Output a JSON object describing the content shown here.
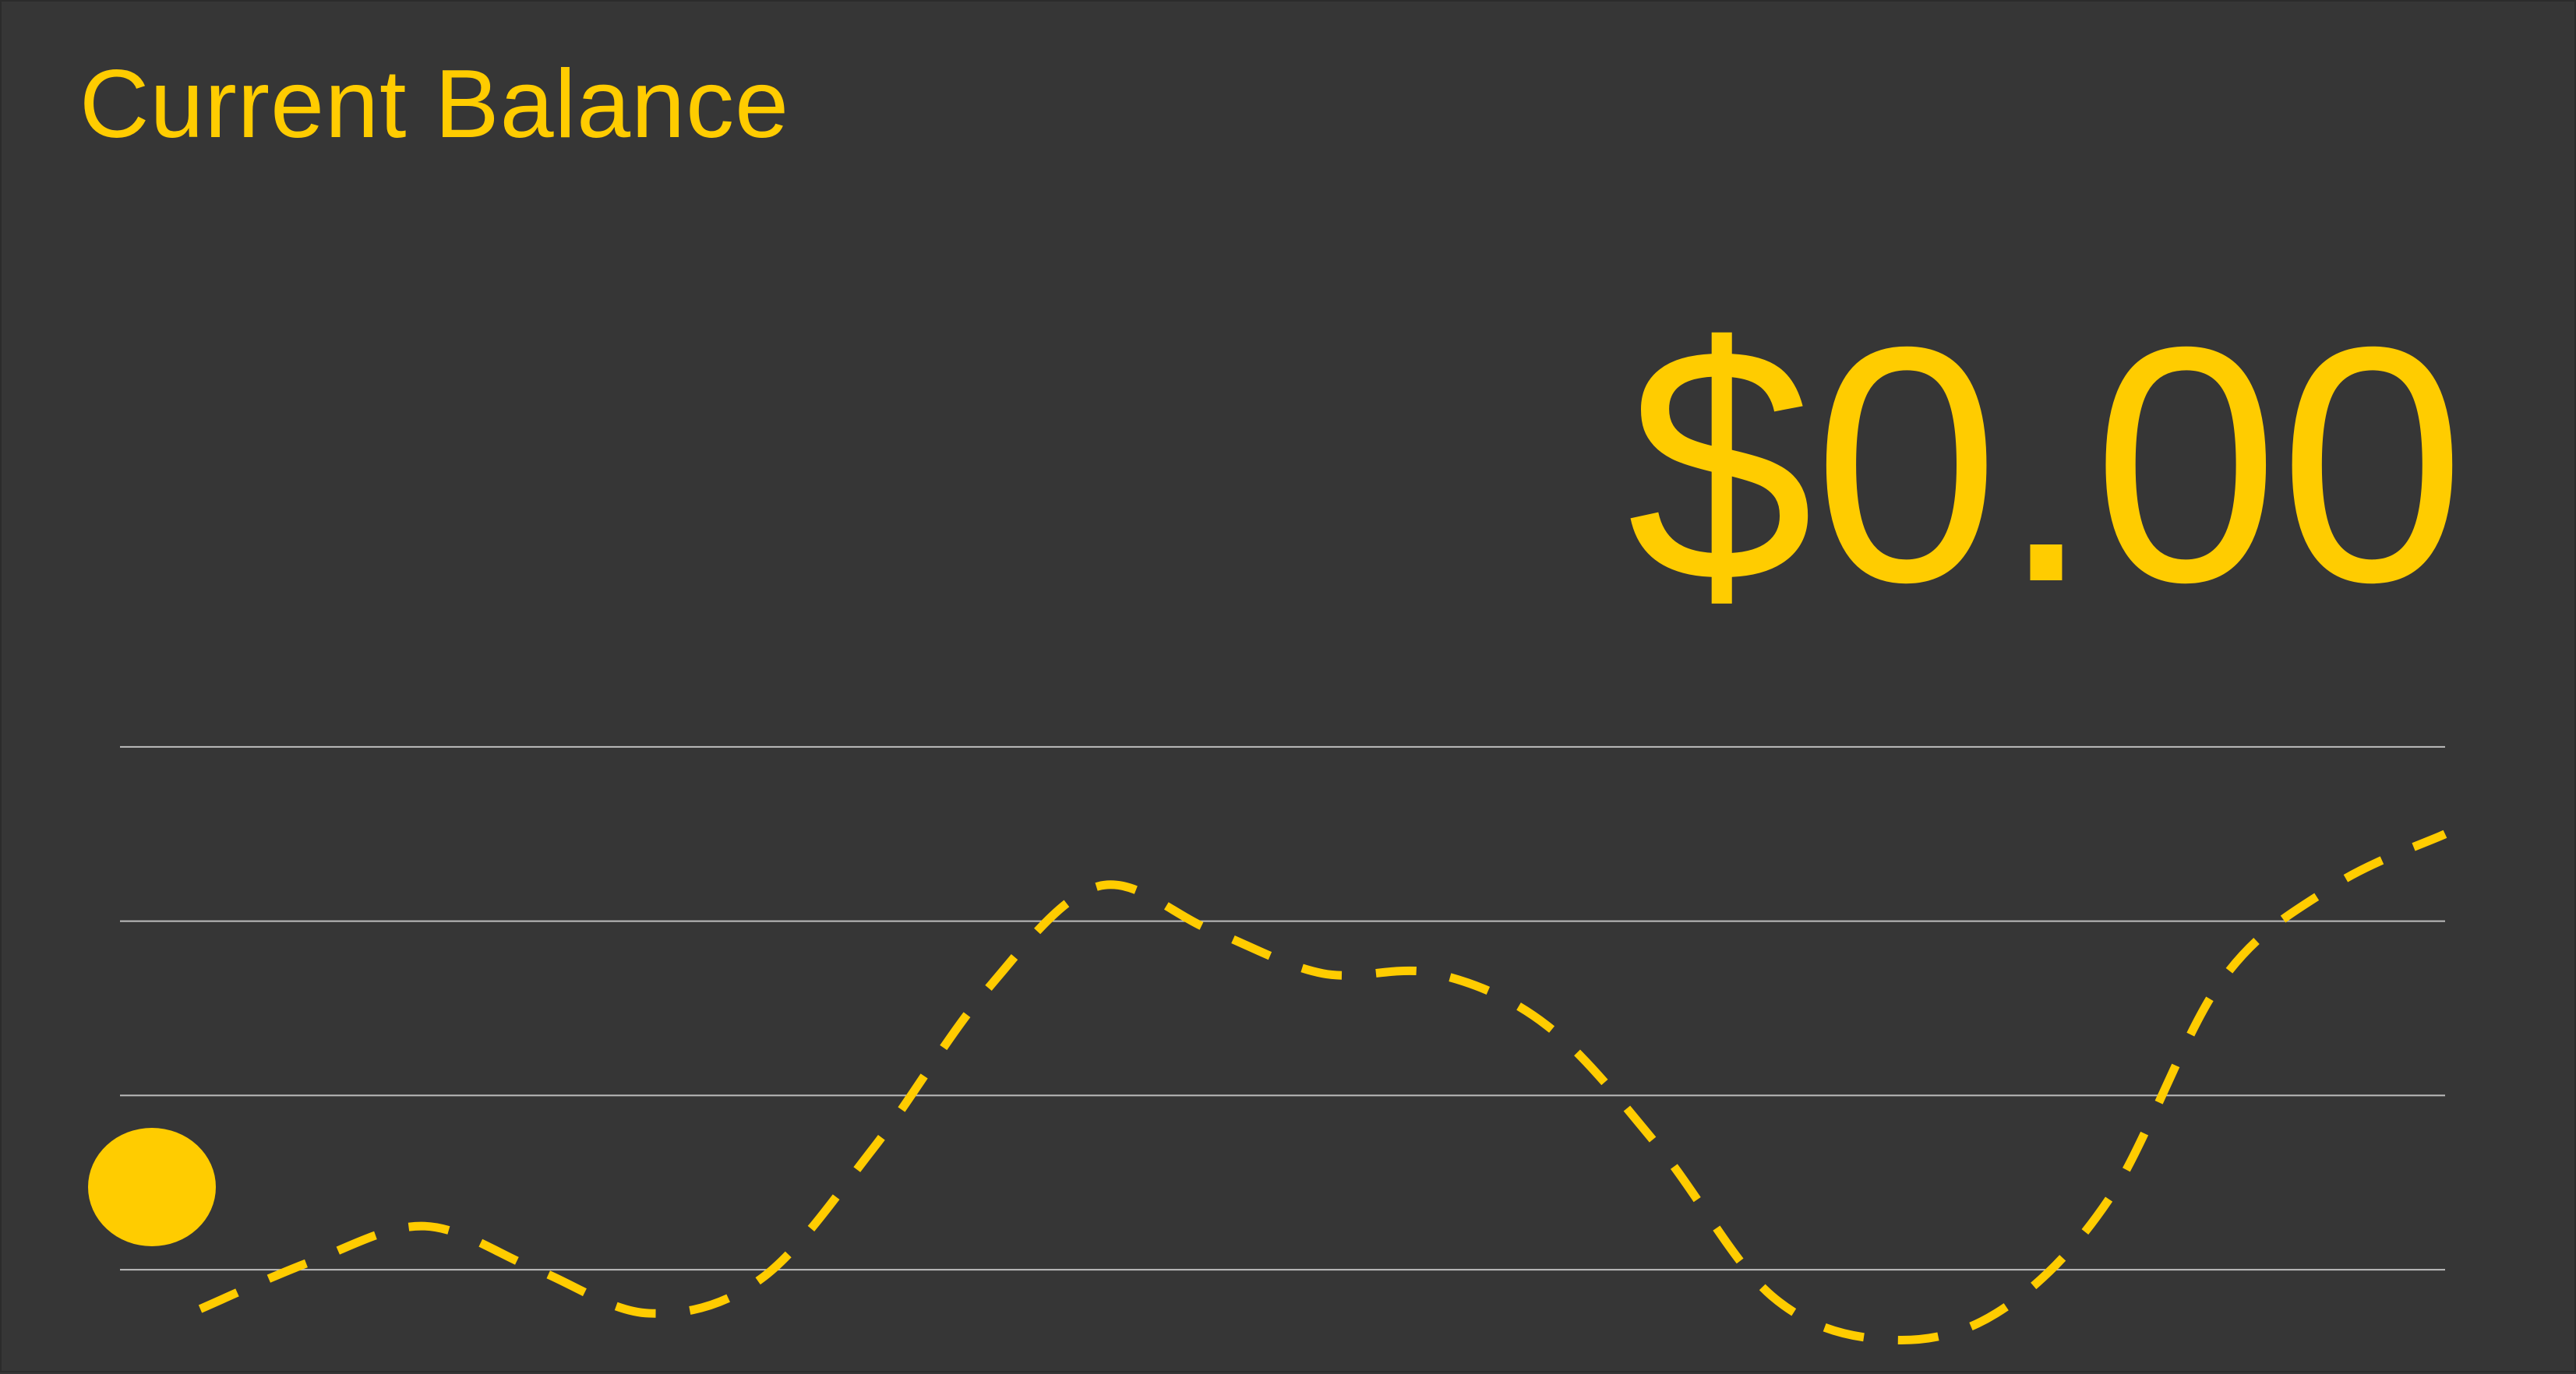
{
  "card": {
    "title": "Current Balance",
    "balance": "$0.00"
  },
  "colors": {
    "background": "#363636",
    "accent": "#FFCC00",
    "gridline": "#BDBDBD"
  },
  "chart_data": {
    "type": "line",
    "title": "",
    "xlabel": "",
    "ylabel": "",
    "grid": true,
    "legend": "none",
    "line_style": "dashed",
    "marker": "start-point",
    "x": [
      0,
      1,
      2,
      3,
      4,
      5,
      6,
      7,
      8,
      9,
      10,
      11,
      12,
      13,
      14,
      15,
      16,
      17,
      18,
      19,
      20
    ],
    "series": [
      {
        "values": [
          0.55,
          1.1,
          1.5,
          1.0,
          0.5,
          0.9,
          2.4,
          4.2,
          5.4,
          4.9,
          4.4,
          4.4,
          3.8,
          2.4,
          0.7,
          0.2,
          0.5,
          1.8,
          4.3,
          5.4,
          6.0
        ]
      }
    ],
    "xlim": [
      0,
      20
    ],
    "ylim": [
      0,
      8
    ],
    "gridlines_y": [
      1,
      3,
      5,
      7
    ]
  }
}
